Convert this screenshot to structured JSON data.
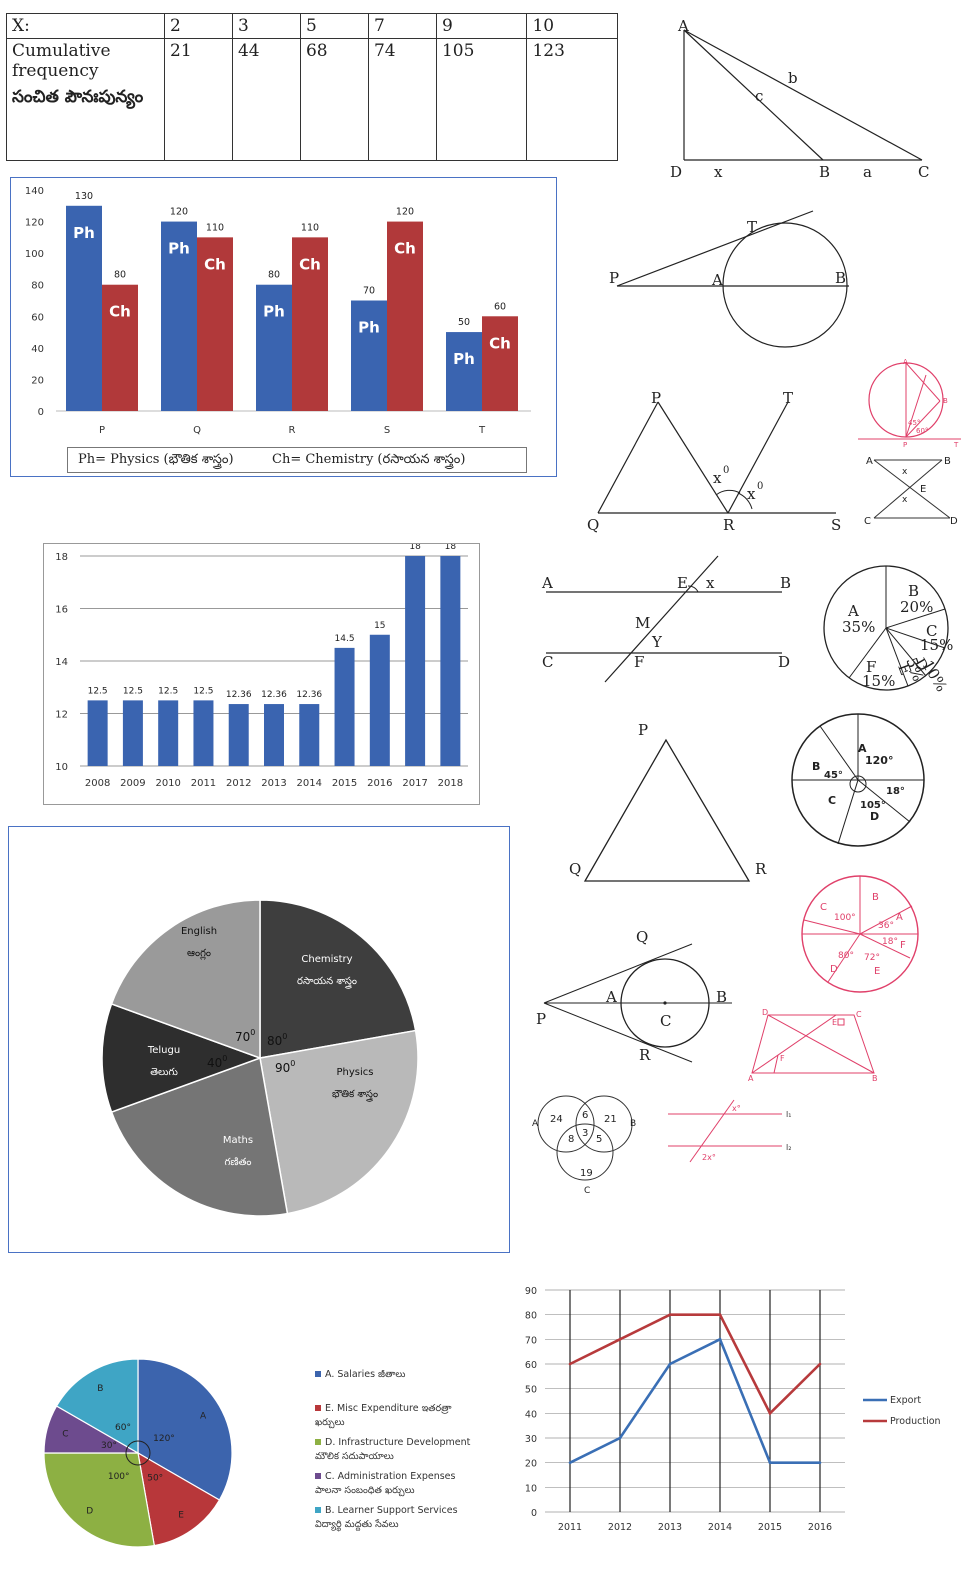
{
  "freq_table": {
    "x_label": "X:",
    "x_values": [
      "2",
      "3",
      "5",
      "7",
      "9",
      "10"
    ],
    "row_label_en_1": "Cumulative",
    "row_label_en_2": "frequency",
    "row_label_te": "సంచిత పౌనఃపున్యం",
    "cf_values": [
      "21",
      "44",
      "68",
      "74",
      "105",
      "123"
    ]
  },
  "chart_data": [
    {
      "type": "bar",
      "categories": [
        "P",
        "Q",
        "R",
        "S",
        "T"
      ],
      "series": [
        {
          "name": "Ph",
          "values": [
            130,
            120,
            80,
            70,
            50
          ],
          "color": "#3a64b0"
        },
        {
          "name": "Ch",
          "values": [
            80,
            110,
            110,
            120,
            60
          ],
          "color": "#b1393a"
        }
      ],
      "ylim": [
        0,
        140
      ],
      "yticks": [
        "0",
        "20",
        "40",
        "60",
        "80",
        "100",
        "120",
        "140"
      ],
      "legend_ph": "Ph= Physics (భౌతిక శాస్త్రం)",
      "legend_ch": "Ch= Chemistry (రసాయన శాస్త్రం)",
      "legend_position": "bottom"
    },
    {
      "type": "bar",
      "categories": [
        "2008",
        "2009",
        "2010",
        "2011",
        "2012",
        "2013",
        "2014",
        "2015",
        "2016",
        "2017",
        "2018"
      ],
      "values": [
        12.5,
        12.5,
        12.5,
        12.5,
        12.36,
        12.36,
        12.36,
        14.5,
        15,
        18,
        18
      ],
      "labels": [
        "12.5",
        "12.5",
        "12.5",
        "12.5",
        "12.36",
        "12.36",
        "12.36",
        "14.5",
        "15",
        "18",
        "18"
      ],
      "ylim": [
        10,
        18
      ],
      "yticks": [
        "10",
        "12",
        "14",
        "16",
        "18"
      ],
      "color": "#3a64b0"
    },
    {
      "type": "pie",
      "slices": [
        {
          "name": "Chemistry",
          "name_te": "రసాయన శాస్త్రం",
          "angle": 80,
          "angle_label": "80",
          "color": "#3e3e3e",
          "text": "#ffffff"
        },
        {
          "name": "Physics",
          "name_te": "భౌతిక శాస్త్రం",
          "angle": 90,
          "angle_label": "90",
          "color": "#b9b9b9",
          "text": "#111111"
        },
        {
          "name": "Maths",
          "name_te": "గణితం",
          "angle": 80,
          "angle_label": "",
          "color": "#757575",
          "text": "#ffffff"
        },
        {
          "name": "Telugu",
          "name_te": "తెలుగు",
          "angle": 40,
          "angle_label": "40",
          "color": "#2e2e2e",
          "text": "#ffffff"
        },
        {
          "name": "English",
          "name_te": "ఆంగ్లం",
          "angle": 70,
          "angle_label": "70",
          "color": "#9a9a9a",
          "text": "#111111"
        }
      ],
      "degree_mark": "0"
    },
    {
      "type": "pie",
      "slices": [
        {
          "name": "A",
          "angle": 120,
          "angle_label": "120°",
          "color": "#3c64ad"
        },
        {
          "name": "E",
          "angle": 50,
          "angle_label": "50°",
          "color": "#b8373a"
        },
        {
          "name": "D",
          "angle": 100,
          "angle_label": "100°",
          "color": "#8db043"
        },
        {
          "name": "C",
          "angle": 30,
          "angle_label": "30°",
          "color": "#6d4b8e"
        },
        {
          "name": "B",
          "angle": 60,
          "angle_label": "60°",
          "color": "#3fa5c5"
        }
      ],
      "legend": [
        {
          "label": "A. Salaries జీతాలు",
          "color": "#3c64ad"
        },
        {
          "label": "E. Misc Expenditure ఇతరత్రా",
          "label2": "ఖర్చులు",
          "color": "#b8373a"
        },
        {
          "label": "D. Infrastructure Development",
          "label2": "మౌలిక సదుపాయాలు",
          "color": "#8db043"
        },
        {
          "label": "C. Administration Expenses",
          "label2": "పాలనా సంబంధిత ఖర్చులు",
          "color": "#6d4b8e"
        },
        {
          "label": "B. Learner Support Services",
          "label2": "విద్యార్థి మద్దతు సేవలు",
          "color": "#3fa5c5"
        }
      ]
    },
    {
      "type": "line",
      "x": [
        "2011",
        "2012",
        "2013",
        "2014",
        "2015",
        "2016"
      ],
      "series": [
        {
          "name": "Export",
          "values": [
            20,
            30,
            60,
            70,
            20,
            20
          ],
          "color": "#3a6fb5"
        },
        {
          "name": "Production",
          "values": [
            60,
            70,
            80,
            80,
            40,
            60
          ],
          "color": "#b73a3c"
        }
      ],
      "ylim": [
        0,
        90
      ],
      "yticks": [
        "0",
        "10",
        "20",
        "30",
        "40",
        "50",
        "60",
        "70",
        "80",
        "90"
      ],
      "legend_position": "right"
    }
  ],
  "geometry": {
    "tri1": {
      "A": "A",
      "D": "D",
      "x": "x",
      "B": "B",
      "a": "a",
      "C": "C",
      "b": "b",
      "c": "c"
    },
    "tangent1": {
      "P": "P",
      "A": "A",
      "B": "B",
      "T": "T"
    },
    "angles": {
      "P": "P",
      "Q": "Q",
      "R": "R",
      "S": "S",
      "T": "T",
      "x1": "x",
      "x2": "x",
      "sup": "0"
    },
    "parallel": {
      "A": "A",
      "B": "B",
      "C": "C",
      "D": "D",
      "E": "E",
      "F": "F",
      "M": "M",
      "x": "x",
      "Y": "Y"
    },
    "pie_pct": {
      "A": "A",
      "A_val": "35%",
      "B": "B",
      "B_val": "20%",
      "C": "C",
      "C_val": "15%",
      "D": "D",
      "D_val": "10%",
      "E": "E",
      "E_val": "5%",
      "F": "F",
      "F_val": "15%"
    },
    "pie_deg": {
      "A": "A",
      "a120": "120°",
      "B": "B",
      "b45": "45°",
      "C": "C",
      "D": "D",
      "d105": "105°",
      "e18": "18°"
    },
    "triangle_pqr": {
      "P": "P",
      "Q": "Q",
      "R": "R"
    },
    "pink_pie": {
      "A": "A",
      "B": "B",
      "C": "C",
      "D": "D",
      "E": "E",
      "F": "F",
      "c100": "100°",
      "b36": "36°",
      "f18": "18°",
      "d80": "80°",
      "e72": "72°"
    },
    "tangent2": {
      "Q": "Q",
      "P": "P",
      "A": "A",
      "B": "B",
      "C": "C",
      "R": "R"
    },
    "venn": {
      "A": "A",
      "B": "B",
      "C": "C",
      "a": "24",
      "b": "21",
      "c": "19",
      "ab": "6",
      "ac": "8",
      "bc": "5",
      "abc": "3"
    },
    "small_pink_circle": {
      "A": "A",
      "B": "B",
      "P": "P",
      "T": "T",
      "a45": "45°",
      "a60": "60°"
    },
    "hourglass": {
      "A": "A",
      "B": "B",
      "C": "C",
      "D": "D",
      "E": "E",
      "x": "x"
    },
    "trapezoid": {
      "D": "D",
      "E": "E",
      "C": "C",
      "A": "A",
      "B": "B",
      "F": "F"
    },
    "parallel2": {
      "l1": "l₁",
      "l2": "l₂",
      "x": "x°",
      "x2": "2x°"
    }
  }
}
